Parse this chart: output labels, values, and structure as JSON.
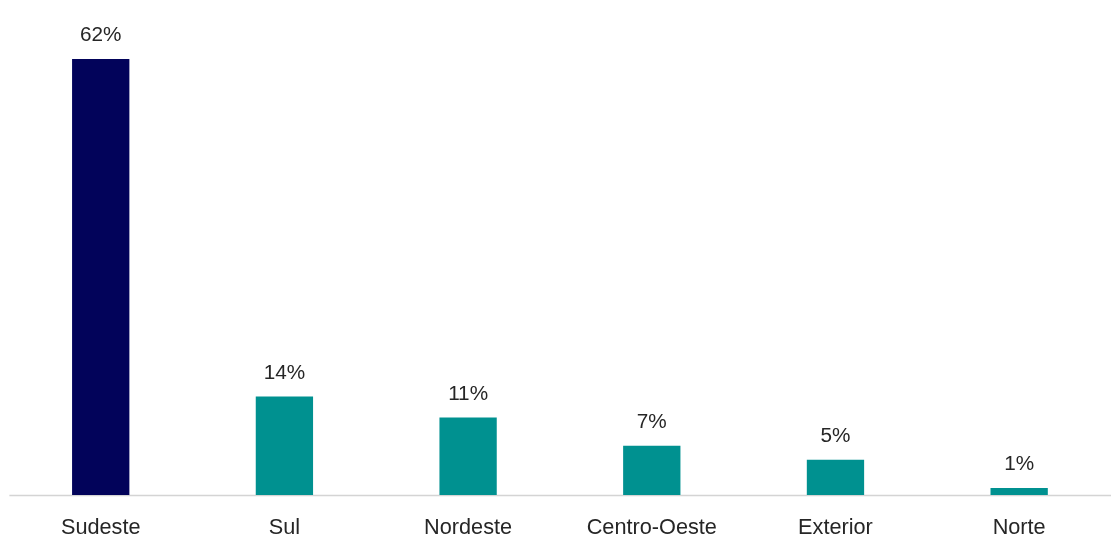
{
  "chart_data": {
    "type": "bar",
    "categories": [
      "Sudeste",
      "Sul",
      "Nordeste",
      "Centro-Oeste",
      "Exterior",
      "Norte"
    ],
    "values": [
      62,
      14,
      11,
      7,
      5,
      1
    ],
    "colors": [
      "#02035a",
      "#009190",
      "#009190",
      "#009190",
      "#009190",
      "#009190"
    ],
    "value_labels": [
      "62%",
      "14%",
      "11%",
      "7%",
      "5%",
      "1%"
    ]
  }
}
